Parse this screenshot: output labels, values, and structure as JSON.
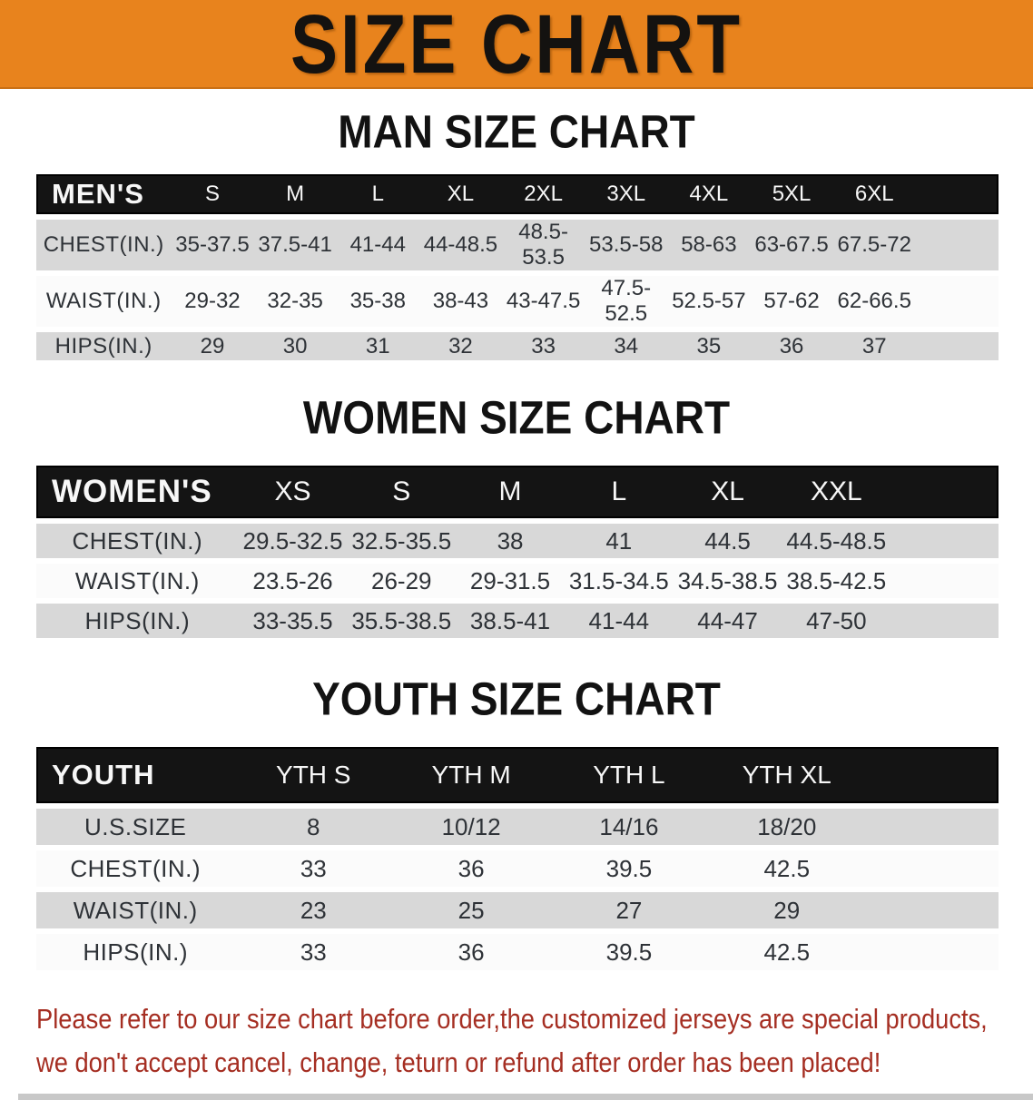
{
  "banner": {
    "title": "SIZE CHART",
    "bg_color": "#E8831D"
  },
  "sections": [
    {
      "id": "men",
      "heading": "MAN SIZE CHART",
      "group_label": "MEN'S",
      "columns": [
        "S",
        "M",
        "L",
        "XL",
        "2XL",
        "3XL",
        "4XL",
        "5XL",
        "6XL"
      ],
      "rows": [
        {
          "label": "CHEST(IN.)",
          "values": [
            "35-37.5",
            "37.5-41",
            "41-44",
            "44-48.5",
            "48.5-53.5",
            "53.5-58",
            "58-63",
            "63-67.5",
            "67.5-72"
          ]
        },
        {
          "label": "WAIST(IN.)",
          "values": [
            "29-32",
            "32-35",
            "35-38",
            "38-43",
            "43-47.5",
            "47.5-52.5",
            "52.5-57",
            "57-62",
            "62-66.5"
          ]
        },
        {
          "label": "HIPS(IN.)",
          "values": [
            "29",
            "30",
            "31",
            "32",
            "33",
            "34",
            "35",
            "36",
            "37"
          ]
        }
      ]
    },
    {
      "id": "women",
      "heading": "WOMEN SIZE CHART",
      "group_label": "WOMEN'S",
      "columns": [
        "XS",
        "S",
        "M",
        "L",
        "XL",
        "XXL"
      ],
      "rows": [
        {
          "label": "CHEST(IN.)",
          "values": [
            "29.5-32.5",
            "32.5-35.5",
            "38",
            "41",
            "44.5",
            "44.5-48.5"
          ]
        },
        {
          "label": "WAIST(IN.)",
          "values": [
            "23.5-26",
            "26-29",
            "29-31.5",
            "31.5-34.5",
            "34.5-38.5",
            "38.5-42.5"
          ]
        },
        {
          "label": "HIPS(IN.)",
          "values": [
            "33-35.5",
            "35.5-38.5",
            "38.5-41",
            "41-44",
            "44-47",
            "47-50"
          ]
        }
      ]
    },
    {
      "id": "youth",
      "heading": "YOUTH SIZE CHART",
      "group_label": "YOUTH",
      "columns": [
        "YTH S",
        "YTH M",
        "YTH L",
        "YTH XL"
      ],
      "rows": [
        {
          "label": "U.S.SIZE",
          "values": [
            "8",
            "10/12",
            "14/16",
            "18/20"
          ]
        },
        {
          "label": "CHEST(IN.)",
          "values": [
            "33",
            "36",
            "39.5",
            "42.5"
          ]
        },
        {
          "label": "WAIST(IN.)",
          "values": [
            "23",
            "25",
            "27",
            "29"
          ]
        },
        {
          "label": "HIPS(IN.)",
          "values": [
            "33",
            "36",
            "39.5",
            "42.5"
          ]
        }
      ]
    }
  ],
  "footer": {
    "lines": [
      "Please refer to our size chart before order,the customized jerseys are special products,",
      "we don't accept cancel, change, teturn or refund after order has been placed!"
    ],
    "text_color": "#A52E22"
  },
  "colors": {
    "header_bar": "#141414",
    "row_gray": "#D8D8D8",
    "row_white": "#FBFBFB",
    "value_text": "#2E3237"
  }
}
